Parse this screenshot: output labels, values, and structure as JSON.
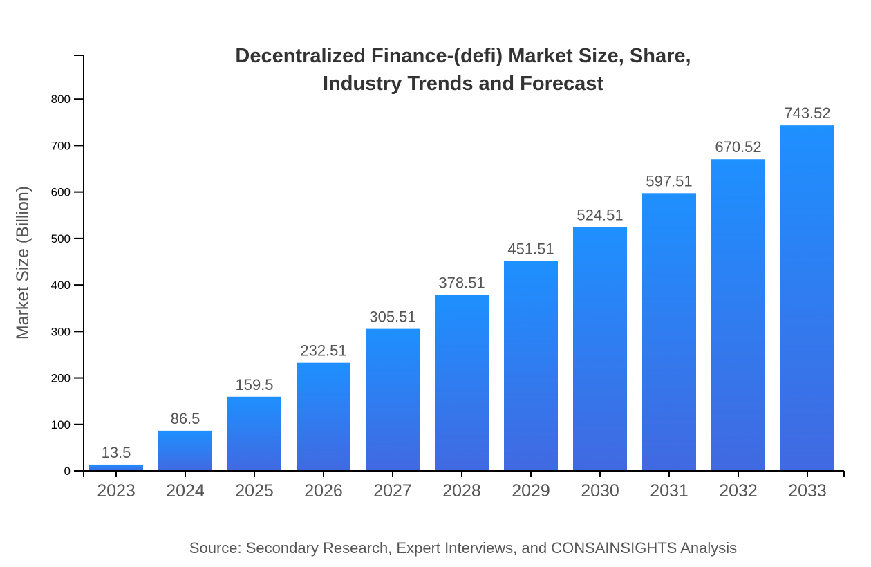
{
  "chart_data": {
    "type": "bar",
    "title_lines": [
      "Decentralized Finance-(defi) Market Size, Share,",
      "Industry Trends and Forecast"
    ],
    "xlabel": "",
    "ylabel": "Market Size (Billion)",
    "categories": [
      "2023",
      "2024",
      "2025",
      "2026",
      "2027",
      "2028",
      "2029",
      "2030",
      "2031",
      "2032",
      "2033"
    ],
    "values": [
      13.5,
      86.5,
      159.5,
      232.51,
      305.51,
      378.51,
      451.51,
      524.51,
      597.51,
      670.52,
      743.52
    ],
    "data_labels": [
      "13.5",
      "86.5",
      "159.5",
      "232.51",
      "305.51",
      "378.51",
      "451.51",
      "524.51",
      "597.51",
      "670.52",
      "743.52"
    ],
    "yticks": [
      0,
      100,
      200,
      300,
      400,
      500,
      600,
      700,
      800
    ],
    "ylim": [
      0,
      894
    ],
    "grid": false,
    "colors": {
      "bar_top": "#1E90FF",
      "bar_bottom": "#4169E1"
    }
  },
  "source": "Source: Secondary Research, Expert Interviews, and CONSAINSIGHTS Analysis"
}
